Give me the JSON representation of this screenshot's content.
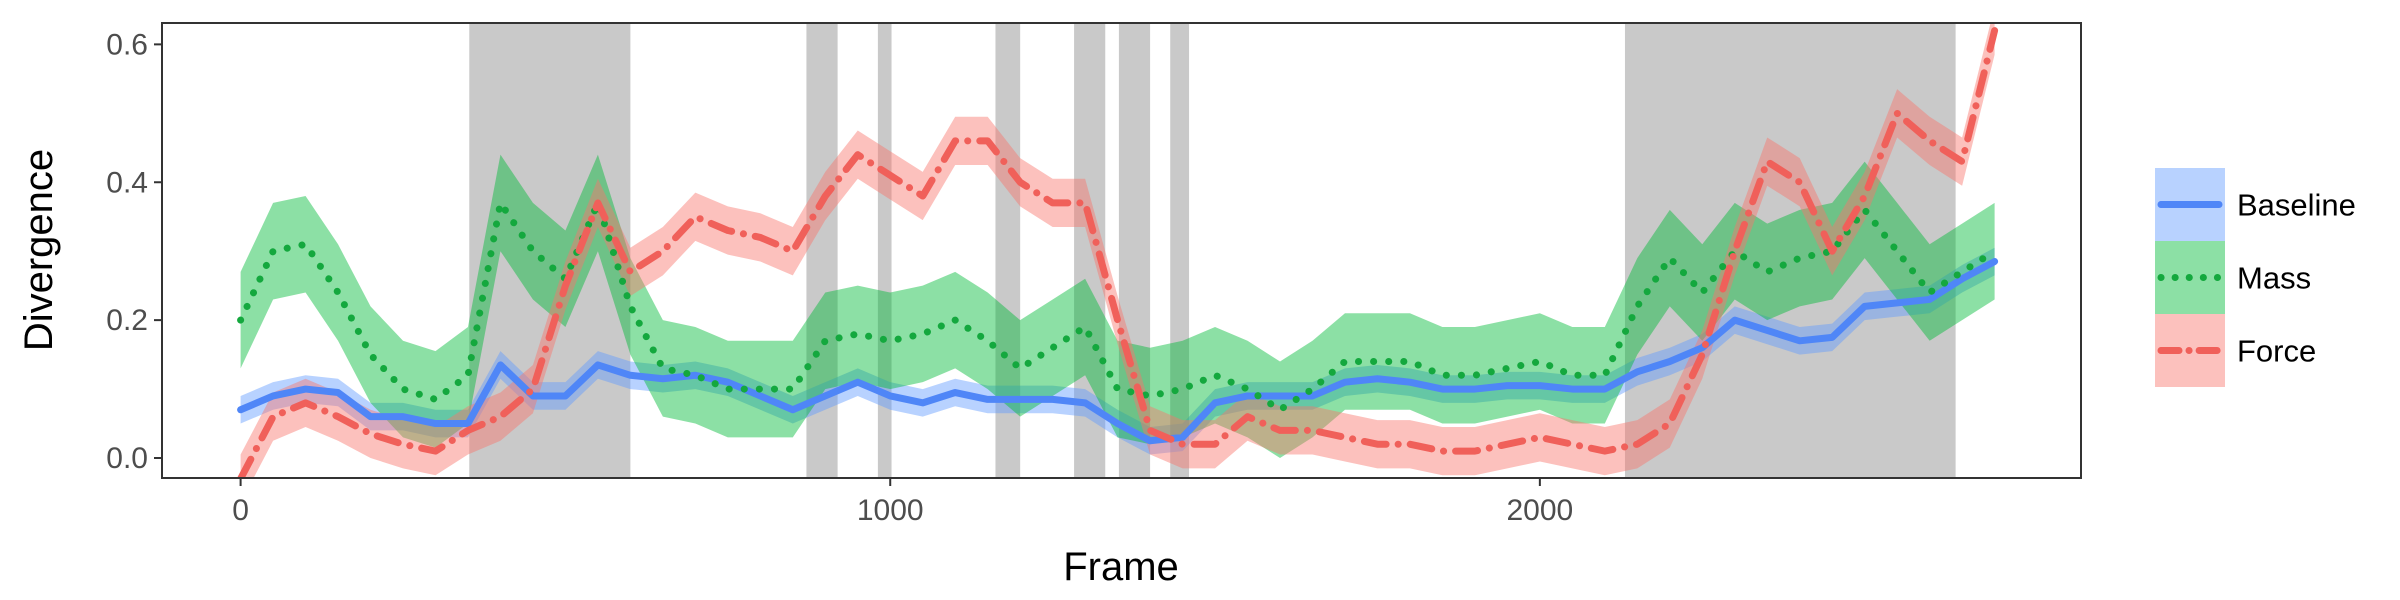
{
  "chart_data": {
    "type": "line",
    "x_label": "Frame",
    "y_label": "Divergence",
    "xlim": [
      -121,
      2833
    ],
    "ylim": [
      -0.029,
      0.631
    ],
    "xticks": [
      0,
      1000,
      2000
    ],
    "yticks": [
      {
        "value": 0,
        "label": "0.0"
      },
      {
        "value": 0.2,
        "label": "0.2"
      },
      {
        "value": 0.4,
        "label": "0.4"
      },
      {
        "value": 0.6,
        "label": "0.6"
      }
    ],
    "shaded_regions": [
      [
        352,
        600
      ],
      [
        871,
        919
      ],
      [
        981,
        1002
      ],
      [
        1162,
        1200
      ],
      [
        1283,
        1331
      ],
      [
        1352,
        1400
      ],
      [
        1431,
        1460
      ],
      [
        2131,
        2640
      ]
    ],
    "shade_color": "#c9c9c9",
    "x": [
      0,
      50,
      100,
      150,
      200,
      250,
      300,
      350,
      400,
      450,
      500,
      550,
      600,
      650,
      700,
      750,
      800,
      850,
      900,
      950,
      1000,
      1050,
      1100,
      1150,
      1200,
      1250,
      1300,
      1350,
      1400,
      1450,
      1500,
      1550,
      1600,
      1650,
      1700,
      1750,
      1800,
      1850,
      1900,
      1950,
      2000,
      2050,
      2100,
      2150,
      2200,
      2250,
      2300,
      2350,
      2400,
      2450,
      2500,
      2550,
      2600,
      2650,
      2700
    ],
    "series": [
      {
        "name": "Baseline",
        "color": "#4f86f7",
        "ribbon_color": "#619cff",
        "dash": "solid",
        "values": [
          0.07,
          0.09,
          0.1,
          0.095,
          0.06,
          0.06,
          0.05,
          0.05,
          0.135,
          0.09,
          0.09,
          0.135,
          0.12,
          0.115,
          0.12,
          0.11,
          0.09,
          0.07,
          0.09,
          0.11,
          0.09,
          0.08,
          0.095,
          0.085,
          0.085,
          0.085,
          0.08,
          0.05,
          0.025,
          0.03,
          0.08,
          0.09,
          0.09,
          0.09,
          0.11,
          0.115,
          0.11,
          0.1,
          0.1,
          0.105,
          0.105,
          0.1,
          0.1,
          0.125,
          0.14,
          0.16,
          0.2,
          0.185,
          0.17,
          0.175,
          0.22,
          0.225,
          0.23,
          0.26,
          0.285
        ],
        "lower": [
          0.05,
          0.07,
          0.08,
          0.075,
          0.04,
          0.04,
          0.03,
          0.03,
          0.115,
          0.07,
          0.07,
          0.115,
          0.1,
          0.095,
          0.1,
          0.09,
          0.07,
          0.05,
          0.07,
          0.09,
          0.07,
          0.06,
          0.075,
          0.065,
          0.065,
          0.065,
          0.06,
          0.03,
          0.005,
          0.01,
          0.06,
          0.07,
          0.07,
          0.07,
          0.09,
          0.095,
          0.09,
          0.08,
          0.08,
          0.085,
          0.085,
          0.08,
          0.08,
          0.105,
          0.12,
          0.14,
          0.18,
          0.165,
          0.15,
          0.155,
          0.2,
          0.205,
          0.21,
          0.24,
          0.265
        ],
        "upper": [
          0.09,
          0.11,
          0.12,
          0.115,
          0.08,
          0.08,
          0.07,
          0.07,
          0.155,
          0.11,
          0.11,
          0.155,
          0.14,
          0.135,
          0.14,
          0.13,
          0.11,
          0.09,
          0.11,
          0.13,
          0.11,
          0.1,
          0.115,
          0.105,
          0.105,
          0.105,
          0.1,
          0.07,
          0.045,
          0.05,
          0.1,
          0.11,
          0.11,
          0.11,
          0.13,
          0.135,
          0.13,
          0.12,
          0.12,
          0.125,
          0.125,
          0.12,
          0.12,
          0.145,
          0.16,
          0.18,
          0.22,
          0.205,
          0.19,
          0.195,
          0.24,
          0.245,
          0.25,
          0.28,
          0.305
        ]
      },
      {
        "name": "Mass",
        "color": "#14a83e",
        "ribbon_color": "#00ba38",
        "dash": "dotted",
        "values": [
          0.2,
          0.3,
          0.31,
          0.24,
          0.15,
          0.1,
          0.085,
          0.12,
          0.37,
          0.3,
          0.26,
          0.37,
          0.22,
          0.13,
          0.12,
          0.1,
          0.1,
          0.1,
          0.17,
          0.18,
          0.17,
          0.18,
          0.2,
          0.17,
          0.13,
          0.16,
          0.19,
          0.1,
          0.09,
          0.1,
          0.12,
          0.1,
          0.07,
          0.1,
          0.14,
          0.14,
          0.14,
          0.12,
          0.12,
          0.13,
          0.14,
          0.12,
          0.12,
          0.22,
          0.29,
          0.24,
          0.3,
          0.27,
          0.29,
          0.3,
          0.36,
          0.3,
          0.24,
          0.27,
          0.3
        ],
        "lower": [
          0.13,
          0.23,
          0.24,
          0.17,
          0.08,
          0.03,
          0.015,
          0.05,
          0.3,
          0.23,
          0.19,
          0.3,
          0.15,
          0.06,
          0.05,
          0.03,
          0.03,
          0.03,
          0.1,
          0.11,
          0.1,
          0.11,
          0.13,
          0.1,
          0.06,
          0.09,
          0.12,
          0.03,
          0.02,
          0.03,
          0.05,
          0.03,
          0,
          0.03,
          0.07,
          0.07,
          0.07,
          0.05,
          0.05,
          0.06,
          0.07,
          0.05,
          0.05,
          0.15,
          0.22,
          0.17,
          0.23,
          0.2,
          0.22,
          0.23,
          0.29,
          0.23,
          0.17,
          0.2,
          0.23
        ],
        "upper": [
          0.27,
          0.37,
          0.38,
          0.31,
          0.22,
          0.17,
          0.155,
          0.19,
          0.44,
          0.37,
          0.33,
          0.44,
          0.29,
          0.2,
          0.19,
          0.17,
          0.17,
          0.17,
          0.24,
          0.25,
          0.24,
          0.25,
          0.27,
          0.24,
          0.2,
          0.23,
          0.26,
          0.17,
          0.16,
          0.17,
          0.19,
          0.17,
          0.14,
          0.17,
          0.21,
          0.21,
          0.21,
          0.19,
          0.19,
          0.2,
          0.21,
          0.19,
          0.19,
          0.29,
          0.36,
          0.31,
          0.37,
          0.34,
          0.36,
          0.37,
          0.43,
          0.37,
          0.31,
          0.34,
          0.37
        ]
      },
      {
        "name": "Force",
        "color": "#f0605a",
        "ribbon_color": "#f8766d",
        "dash": "dashdot",
        "values": [
          -0.03,
          0.06,
          0.08,
          0.06,
          0.035,
          0.02,
          0.01,
          0.04,
          0.06,
          0.1,
          0.25,
          0.37,
          0.27,
          0.3,
          0.35,
          0.33,
          0.32,
          0.3,
          0.38,
          0.44,
          0.41,
          0.38,
          0.46,
          0.46,
          0.4,
          0.37,
          0.37,
          0.2,
          0.04,
          0.02,
          0.02,
          0.06,
          0.04,
          0.04,
          0.03,
          0.02,
          0.02,
          0.01,
          0.01,
          0.02,
          0.03,
          0.02,
          0.01,
          0.02,
          0.05,
          0.15,
          0.3,
          0.43,
          0.4,
          0.3,
          0.38,
          0.5,
          0.46,
          0.43,
          0.62
        ],
        "lower": [
          -0.065,
          0.025,
          0.045,
          0.025,
          0,
          -0.015,
          -0.025,
          0.005,
          0.025,
          0.065,
          0.215,
          0.335,
          0.235,
          0.265,
          0.315,
          0.295,
          0.285,
          0.265,
          0.345,
          0.405,
          0.375,
          0.345,
          0.425,
          0.425,
          0.365,
          0.335,
          0.335,
          0.165,
          0.005,
          -0.015,
          -0.015,
          0.025,
          0.005,
          0.005,
          -0.005,
          -0.015,
          -0.015,
          -0.025,
          -0.025,
          -0.015,
          -0.005,
          -0.015,
          -0.025,
          -0.015,
          0.015,
          0.115,
          0.265,
          0.395,
          0.365,
          0.265,
          0.345,
          0.465,
          0.425,
          0.395,
          0.585
        ],
        "upper": [
          0.005,
          0.095,
          0.115,
          0.095,
          0.07,
          0.055,
          0.045,
          0.075,
          0.095,
          0.135,
          0.285,
          0.405,
          0.305,
          0.335,
          0.385,
          0.365,
          0.355,
          0.335,
          0.415,
          0.475,
          0.445,
          0.415,
          0.495,
          0.495,
          0.435,
          0.405,
          0.405,
          0.235,
          0.075,
          0.055,
          0.055,
          0.095,
          0.075,
          0.075,
          0.065,
          0.055,
          0.055,
          0.045,
          0.045,
          0.055,
          0.065,
          0.055,
          0.045,
          0.055,
          0.085,
          0.185,
          0.335,
          0.465,
          0.435,
          0.335,
          0.415,
          0.535,
          0.495,
          0.465,
          0.655
        ]
      }
    ],
    "legend": "right"
  }
}
